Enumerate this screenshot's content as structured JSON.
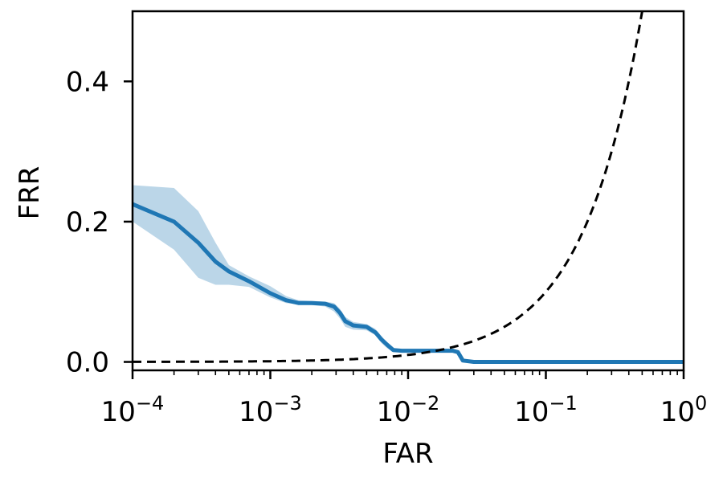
{
  "chart_data": {
    "type": "line",
    "xlabel": "FAR",
    "ylabel": "FRR",
    "xscale": "log",
    "xlim": [
      0.0001,
      1
    ],
    "ylim": [
      -0.012,
      0.5
    ],
    "grid": false,
    "x_ticks": [
      {
        "value": 0.0001,
        "base": "10",
        "exp": "−4"
      },
      {
        "value": 0.001,
        "base": "10",
        "exp": "−3"
      },
      {
        "value": 0.01,
        "base": "10",
        "exp": "−2"
      },
      {
        "value": 0.1,
        "base": "10",
        "exp": "−1"
      },
      {
        "value": 1,
        "base": "10",
        "exp": "0"
      }
    ],
    "y_ticks": [
      {
        "value": 0.0,
        "label": "0.0"
      },
      {
        "value": 0.2,
        "label": "0.2"
      },
      {
        "value": 0.4,
        "label": "0.4"
      }
    ],
    "series": [
      {
        "style": "solid",
        "color": "#1f77b4",
        "x": [
          0.0001,
          0.0002,
          0.0003,
          0.0004,
          0.0005,
          0.0007,
          0.001,
          0.0013,
          0.0016,
          0.002,
          0.0025,
          0.0029,
          0.0032,
          0.0035,
          0.004,
          0.005,
          0.0058,
          0.0064,
          0.007,
          0.0078,
          0.009,
          0.012,
          0.018,
          0.021,
          0.023,
          0.025,
          0.03,
          0.1,
          1
        ],
        "y": [
          0.225,
          0.2,
          0.17,
          0.143,
          0.129,
          0.115,
          0.098,
          0.088,
          0.084,
          0.084,
          0.083,
          0.079,
          0.07,
          0.058,
          0.052,
          0.05,
          0.042,
          0.032,
          0.025,
          0.017,
          0.016,
          0.016,
          0.016,
          0.016,
          0.014,
          0.002,
          0.0,
          0.0,
          0.0
        ]
      },
      {
        "style": "dashed",
        "color": "#000000",
        "type": "line",
        "x": [
          0.0001,
          0.001,
          0.01,
          0.03,
          0.1,
          0.2,
          0.3,
          0.4,
          0.5
        ],
        "y": [
          0.0001,
          0.001,
          0.01,
          0.03,
          0.1,
          0.2,
          0.3,
          0.4,
          0.5
        ]
      }
    ],
    "band": {
      "color": "#1f77b4",
      "opacity": 0.3,
      "x": [
        0.0001,
        0.0002,
        0.0003,
        0.0004,
        0.0005,
        0.0007,
        0.001,
        0.0013,
        0.0016,
        0.002,
        0.0025,
        0.0029,
        0.0032,
        0.0035,
        0.004,
        0.005,
        0.0058,
        0.0064,
        0.007,
        0.0078,
        0.009,
        0.012,
        0.018,
        0.021,
        0.023,
        0.025,
        0.03,
        0.1,
        1
      ],
      "upper": [
        0.252,
        0.248,
        0.215,
        0.17,
        0.138,
        0.122,
        0.108,
        0.094,
        0.088,
        0.087,
        0.086,
        0.084,
        0.076,
        0.064,
        0.057,
        0.054,
        0.047,
        0.037,
        0.029,
        0.02,
        0.018,
        0.018,
        0.018,
        0.018,
        0.017,
        0.004,
        0.001,
        0.0,
        0.0
      ],
      "lower": [
        0.2,
        0.16,
        0.12,
        0.11,
        0.11,
        0.107,
        0.092,
        0.084,
        0.082,
        0.081,
        0.079,
        0.072,
        0.062,
        0.05,
        0.046,
        0.045,
        0.038,
        0.027,
        0.02,
        0.014,
        0.014,
        0.014,
        0.014,
        0.014,
        0.011,
        0.0,
        0.0,
        0.0,
        0.0
      ]
    }
  }
}
